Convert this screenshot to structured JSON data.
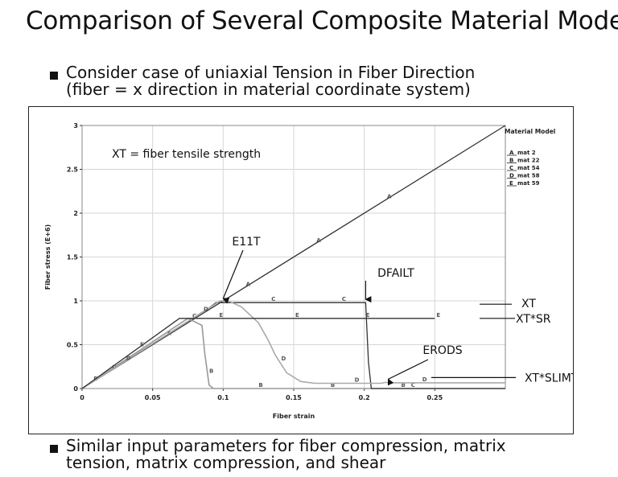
{
  "slide": {
    "title": "Comparison of Several Composite Material Models",
    "bullet_1": {
      "line_1": "Consider case of uniaxial Tension in Fiber Direction",
      "line_2": "(fiber = x direction in material coordinate system)"
    },
    "bullet_2": {
      "line_1": "Similar input parameters for fiber compression, matrix",
      "line_2": "tension, matrix compression, and shear"
    }
  },
  "chart_data": {
    "type": "line",
    "xlabel": "Fiber strain",
    "ylabel": "Fiber stress (E+6)",
    "xlim": [
      0,
      0.3
    ],
    "ylim": [
      0,
      3
    ],
    "xticks": [
      "0",
      "0.05",
      "0.1",
      "0.15",
      "0.2",
      "0.25"
    ],
    "xtick_values": [
      0,
      0.05,
      0.1,
      0.15,
      0.2,
      0.25
    ],
    "yticks": [
      "0",
      "0.5",
      "1",
      "1.5",
      "2",
      "2.5",
      "3"
    ],
    "ytick_values": [
      0,
      0.5,
      1,
      1.5,
      2,
      2.5,
      3
    ],
    "grid": true,
    "legend": {
      "title": "Material Model",
      "position": "top-right",
      "entries": [
        {
          "marker": "A",
          "label": "mat 2"
        },
        {
          "marker": "B",
          "label": "mat 22"
        },
        {
          "marker": "C",
          "label": "mat 54"
        },
        {
          "marker": "D",
          "label": "mat 58"
        },
        {
          "marker": "E",
          "label": "mat 59"
        }
      ]
    },
    "series": [
      {
        "marker": "A",
        "color": "#333333",
        "points": [
          [
            0,
            0
          ],
          [
            0.3,
            3.0
          ]
        ],
        "marker_x": [
          0.059,
          0.115,
          0.165,
          0.215
        ]
      },
      {
        "marker": "B",
        "color": "#999999",
        "points": [
          [
            0,
            0
          ],
          [
            0.075,
            0.8
          ],
          [
            0.085,
            0.72
          ],
          [
            0.087,
            0.4
          ],
          [
            0.09,
            0.04
          ],
          [
            0.093,
            0
          ],
          [
            0.3,
            0
          ]
        ],
        "marker_x": [
          0.007,
          0.089,
          0.124,
          0.175,
          0.225
        ]
      },
      {
        "marker": "C",
        "color": "#333333",
        "points": [
          [
            0,
            0
          ],
          [
            0.09,
            0.92
          ],
          [
            0.095,
            0.98
          ],
          [
            0.201,
            0.98
          ],
          [
            0.203,
            0.3
          ],
          [
            0.205,
            0
          ],
          [
            0.3,
            0
          ]
        ],
        "marker_x": [
          0.02,
          0.077,
          0.133,
          0.183,
          0.232
        ]
      },
      {
        "marker": "D",
        "color": "#aaaaaa",
        "points": [
          [
            0,
            0
          ],
          [
            0.098,
            1.0
          ],
          [
            0.105,
            0.99
          ],
          [
            0.113,
            0.93
          ],
          [
            0.125,
            0.75
          ],
          [
            0.132,
            0.55
          ],
          [
            0.137,
            0.38
          ],
          [
            0.145,
            0.18
          ],
          [
            0.155,
            0.08
          ],
          [
            0.165,
            0.06
          ],
          [
            0.212,
            0.06
          ],
          [
            0.215,
            0.07
          ],
          [
            0.22,
            0.065
          ],
          [
            0.3,
            0.065
          ]
        ],
        "marker_x": [
          0.03,
          0.085,
          0.14,
          0.192,
          0.24
        ]
      },
      {
        "marker": "E",
        "color": "#333333",
        "points": [
          [
            0,
            0
          ],
          [
            0.069,
            0.8
          ],
          [
            0.25,
            0.8
          ]
        ],
        "marker_x": [
          0.04,
          0.096,
          0.15,
          0.2,
          0.25
        ]
      }
    ],
    "annotations": [
      {
        "text": "XT = fiber tensile strength"
      },
      {
        "text": "E11T",
        "arrow_to": [
          0.1,
          0.99
        ]
      },
      {
        "text": "DFAILT",
        "arrow_to": [
          0.201,
          0.98
        ]
      },
      {
        "text": "ERODS",
        "arrow_to": [
          0.217,
          0.07
        ]
      }
    ],
    "right_labels": [
      {
        "text": "XT",
        "y": 0.98
      },
      {
        "text": "XT*SR",
        "y": 0.8
      },
      {
        "text": "XT*SLIMT",
        "y": 0.07
      }
    ]
  }
}
